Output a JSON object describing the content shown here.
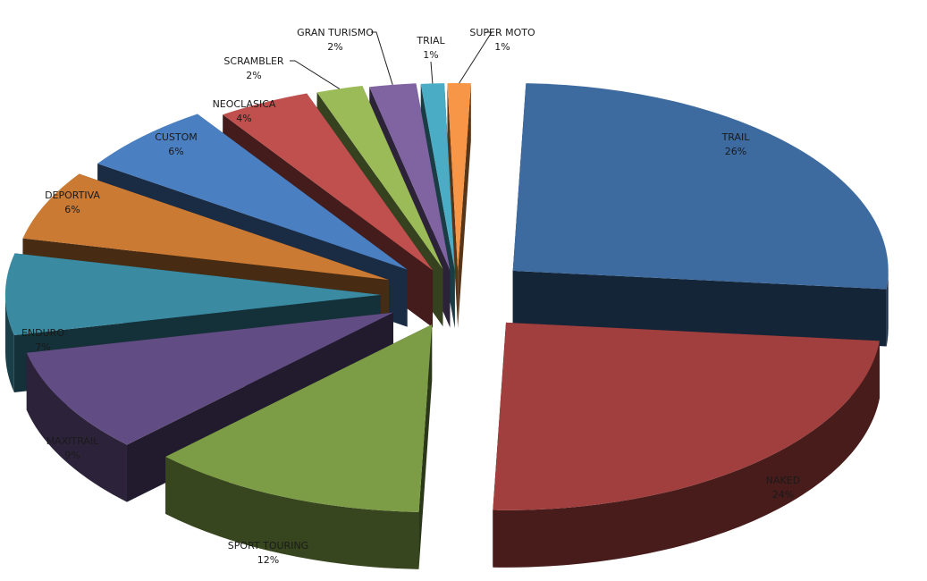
{
  "chart_data": {
    "type": "pie",
    "title": "",
    "style": "3d-exploded",
    "categories": [
      "TRAIL",
      "NAKED",
      "SPORT TOURING",
      "MAXITRAIL",
      "ENDURO",
      "DEPORTIVA",
      "CUSTOM",
      "NEOCLASICA",
      "SCRAMBLER",
      "GRAN TURISMO",
      "TRIAL",
      "SUPER MOTO"
    ],
    "values": [
      26,
      24,
      12,
      9,
      7,
      6,
      6,
      4,
      2,
      2,
      1,
      1
    ],
    "labels": [
      "26%",
      "24%",
      "12%",
      "9%",
      "7%",
      "6%",
      "6%",
      "4%",
      "2%",
      "2%",
      "1%",
      "1%"
    ],
    "colors": [
      "#3d6ba0",
      "#a03f3d",
      "#7c9c46",
      "#614d83",
      "#3a8ba2",
      "#cb7a34",
      "#4a7fc1",
      "#c0504d",
      "#9bbb59",
      "#8064a2",
      "#4bacc6",
      "#f79646"
    ],
    "legend": "none"
  }
}
